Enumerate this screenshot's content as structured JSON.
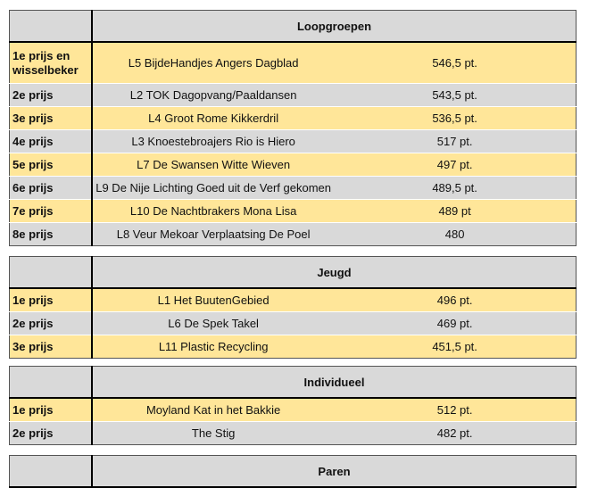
{
  "sections": [
    {
      "title": "Loopgroepen",
      "rows": [
        {
          "prize": "1e prijs en wisselbeker",
          "name": "L5  BijdeHandjes   Angers Dagblad",
          "score": "546,5 pt."
        },
        {
          "prize": "2e prijs",
          "name": "L2   TOK   Dagopvang/Paaldansen",
          "score": "543,5 pt."
        },
        {
          "prize": "3e prijs",
          "name": "L4   Groot Rome   Kikkerdril",
          "score": "536,5 pt."
        },
        {
          "prize": "4e prijs",
          "name": "L3  Knoestebroajers  Rio is Hiero",
          "score": "517 pt."
        },
        {
          "prize": "5e prijs",
          "name": "L7   De Swansen   Witte Wieven",
          "score": "497 pt."
        },
        {
          "prize": "6e prijs",
          "name": "L9   De Nije Lichting   Goed uit de Verf gekomen",
          "score": "489,5 pt."
        },
        {
          "prize": "7e prijs",
          "name": "L10  De Nachtbrakers  Mona Lisa",
          "score": "489 pt"
        },
        {
          "prize": "8e prijs",
          "name": "L8    Veur Mekoar  Verplaatsing  De Poel",
          "score": "480"
        }
      ]
    },
    {
      "title": "Jeugd",
      "rows": [
        {
          "prize": "1e prijs",
          "name": "L1  Het BuutenGebied",
          "score": "496 pt."
        },
        {
          "prize": "2e prijs",
          "name": "L6  De Spek Takel",
          "score": "469 pt."
        },
        {
          "prize": "3e prijs",
          "name": "L11  Plastic Recycling",
          "score": "451,5 pt."
        }
      ]
    },
    {
      "title": "Individueel",
      "rows": [
        {
          "prize": "1e prijs",
          "name": "Moyland  Kat in het Bakkie",
          "score": "512 pt."
        },
        {
          "prize": "2e prijs",
          "name": "The Stig",
          "score": "482 pt."
        }
      ]
    },
    {
      "title": "Paren",
      "rows": []
    }
  ],
  "colors": {
    "highlight": "#ffe699",
    "gray": "#d9d9d9"
  }
}
